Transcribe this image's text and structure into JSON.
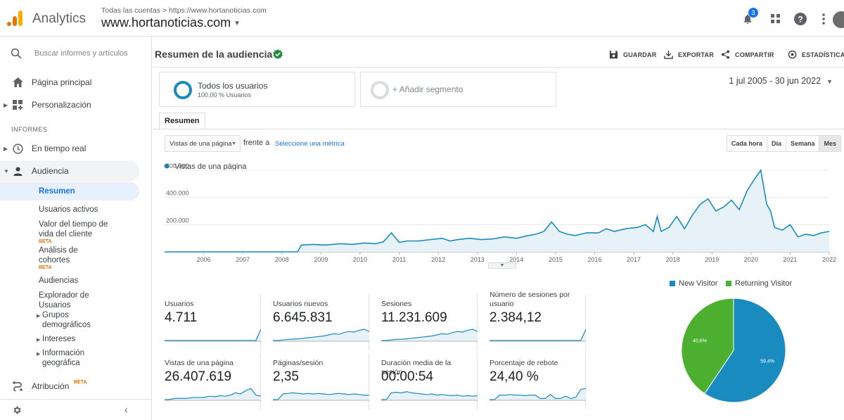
{
  "app": {
    "name": "Analytics",
    "breadcrumb": "Todas las cuentas > https://www.hortanoticias.com",
    "property": "www.hortanoticias.com",
    "notifications_count": "3",
    "icons": [
      "notifications-icon",
      "apps-grid-icon",
      "help-icon",
      "more-vert-icon"
    ]
  },
  "sidebar": {
    "search_placeholder": "Buscar informes y artículos",
    "home": "Página principal",
    "customization": "Personalización",
    "section_reports": "INFORMES",
    "realtime": "En tiempo real",
    "audience": "Audiencia",
    "audience_items": {
      "overview": "Resumen",
      "active_users": "Usuarios activos",
      "lifetime_value": "Valor del tiempo de vida del cliente",
      "cohort": "Análisis de cohortes",
      "audiences": "Audiencias",
      "user_explorer": "Explorador de Usuarios",
      "demographics": "Grupos demográficos",
      "interests": "Intereses",
      "geo": "Información geográfica"
    },
    "attribution": "Atribución",
    "beta_badge": "BETA"
  },
  "report": {
    "title": "Resumen de la audiencia",
    "actions": {
      "save": "GUARDAR",
      "export": "EXPORTAR",
      "share": "COMPARTIR",
      "insights": "ESTADÍSTICAS"
    },
    "segment": {
      "name": "Todos los usuarios",
      "sub": "100,00 % Usuarios",
      "add": "+ Añadir segmento"
    },
    "date_range": "1 jul 2005 - 30 jun 2022",
    "tab": "Resumen",
    "metric_select": "Vistas de una página",
    "versus": "frente a",
    "select_metric": "Seleccione una métrica",
    "granularity": [
      "Cada hora",
      "Día",
      "Semana",
      "Mes"
    ]
  },
  "chart_data": [
    {
      "type": "area",
      "legend": [
        "Vistas de una página"
      ],
      "x": [
        "2006",
        "2007",
        "2008",
        "2009",
        "2010",
        "2011",
        "2012",
        "2013",
        "2014",
        "2015",
        "2016",
        "2017",
        "2018",
        "2019",
        "2020",
        "2021",
        "2022"
      ],
      "y_ticks": [
        "200.000",
        "400.000",
        "600.000"
      ],
      "ylim": [
        0,
        600000
      ],
      "series": [
        {
          "name": "Vistas de una página",
          "color": "#1a8bbf",
          "values": [
            [
              2005.5,
              0
            ],
            [
              2006,
              0
            ],
            [
              2007,
              0
            ],
            [
              2008,
              0
            ],
            [
              2008.9,
              0
            ],
            [
              2009.0,
              50000
            ],
            [
              2009.3,
              55000
            ],
            [
              2009.6,
              50000
            ],
            [
              2010.0,
              60000
            ],
            [
              2010.3,
              55000
            ],
            [
              2010.6,
              65000
            ],
            [
              2010.9,
              60000
            ],
            [
              2011.1,
              75000
            ],
            [
              2011.3,
              140000
            ],
            [
              2011.5,
              70000
            ],
            [
              2011.7,
              80000
            ],
            [
              2012.0,
              80000
            ],
            [
              2012.3,
              90000
            ],
            [
              2012.6,
              100000
            ],
            [
              2012.8,
              80000
            ],
            [
              2013.0,
              90000
            ],
            [
              2013.3,
              100000
            ],
            [
              2013.6,
              90000
            ],
            [
              2013.9,
              95000
            ],
            [
              2014.2,
              110000
            ],
            [
              2014.5,
              100000
            ],
            [
              2014.8,
              120000
            ],
            [
              2015.0,
              130000
            ],
            [
              2015.2,
              150000
            ],
            [
              2015.4,
              220000
            ],
            [
              2015.6,
              150000
            ],
            [
              2015.8,
              130000
            ],
            [
              2016.0,
              120000
            ],
            [
              2016.3,
              140000
            ],
            [
              2016.6,
              140000
            ],
            [
              2016.8,
              170000
            ],
            [
              2017.0,
              150000
            ],
            [
              2017.3,
              170000
            ],
            [
              2017.6,
              180000
            ],
            [
              2017.8,
              200000
            ],
            [
              2018.0,
              150000
            ],
            [
              2018.1,
              260000
            ],
            [
              2018.2,
              150000
            ],
            [
              2018.4,
              180000
            ],
            [
              2018.6,
              260000
            ],
            [
              2018.8,
              170000
            ],
            [
              2019.0,
              270000
            ],
            [
              2019.2,
              350000
            ],
            [
              2019.4,
              390000
            ],
            [
              2019.6,
              300000
            ],
            [
              2019.8,
              330000
            ],
            [
              2020.0,
              380000
            ],
            [
              2020.2,
              310000
            ],
            [
              2020.4,
              450000
            ],
            [
              2020.6,
              540000
            ],
            [
              2020.75,
              600000
            ],
            [
              2020.9,
              350000
            ],
            [
              2021.0,
              300000
            ],
            [
              2021.1,
              180000
            ],
            [
              2021.3,
              160000
            ],
            [
              2021.5,
              200000
            ],
            [
              2021.7,
              110000
            ],
            [
              2021.9,
              130000
            ],
            [
              2022.1,
              120000
            ],
            [
              2022.3,
              140000
            ],
            [
              2022.5,
              150000
            ]
          ]
        }
      ]
    },
    {
      "type": "pie",
      "legend": [
        "New Visitor",
        "Returning Visitor"
      ],
      "slices": [
        {
          "name": "New Visitor",
          "value": 59.4,
          "label": "59,4%",
          "color": "#1a8bbf"
        },
        {
          "name": "Returning Visitor",
          "value": 40.6,
          "label": "40,6%",
          "color": "#4caf2f"
        }
      ]
    }
  ],
  "scorecards": [
    {
      "label": "Usuarios",
      "value": "4.711",
      "spark": [
        0,
        0,
        0,
        0,
        0,
        0,
        0,
        0,
        0,
        0,
        0,
        0,
        0,
        0,
        0,
        0,
        0,
        0,
        0,
        1
      ]
    },
    {
      "label": "Usuarios nuevos",
      "value": "6.645.831",
      "spark": [
        0,
        0,
        0.05,
        0.1,
        0.12,
        0.15,
        0.2,
        0.25,
        0.3,
        0.35,
        0.4,
        0.5,
        0.6,
        0.55,
        0.7,
        0.8,
        0.75,
        0.9,
        1,
        0.8
      ]
    },
    {
      "label": "Sesiones",
      "value": "11.231.609",
      "spark": [
        0,
        0,
        0.05,
        0.1,
        0.12,
        0.15,
        0.2,
        0.25,
        0.3,
        0.35,
        0.4,
        0.5,
        0.6,
        0.55,
        0.7,
        0.8,
        0.75,
        0.9,
        1,
        0.8
      ]
    },
    {
      "label": "Número de sesiones por usuario",
      "value": "2.384,12",
      "spark": [
        0,
        0,
        0,
        0,
        0,
        0,
        0,
        0,
        0,
        0,
        0,
        0,
        0,
        0,
        0,
        0,
        0,
        0,
        0,
        1
      ]
    },
    {
      "label": "Vistas de una página",
      "value": "26.407.619",
      "spark": [
        0,
        0,
        0.1,
        0.12,
        0.1,
        0.15,
        0.2,
        0.18,
        0.22,
        0.3,
        0.25,
        0.35,
        0.3,
        0.4,
        0.6,
        0.5,
        0.8,
        1,
        0.4,
        0.3
      ]
    },
    {
      "label": "Páginas/sesión",
      "value": "2,35",
      "spark": [
        0,
        0,
        0.5,
        0.55,
        0.6,
        0.55,
        0.5,
        0.55,
        0.5,
        0.55,
        0.5,
        0.45,
        0.5,
        0.55,
        0.5,
        0.45,
        0.5,
        0.45,
        0.4,
        0.4
      ]
    },
    {
      "label": "Duración media de la sesión",
      "value": "00:00:54",
      "spark": [
        0,
        0,
        0.6,
        0.65,
        0.6,
        0.7,
        0.6,
        0.55,
        0.5,
        0.45,
        0.5,
        0.4,
        0.45,
        0.4,
        0.35,
        0.4,
        0.3,
        0.35,
        0.3,
        0.35
      ]
    },
    {
      "label": "Porcentaje de rebote",
      "value": "24,40 %",
      "spark": [
        0,
        0,
        0.4,
        0.4,
        0.45,
        0.4,
        0.4,
        0.35,
        0.4,
        0.4,
        0.1,
        0.1,
        0.45,
        0.1,
        0.1,
        0.3,
        0.1,
        0.2,
        0.9,
        1
      ]
    }
  ]
}
